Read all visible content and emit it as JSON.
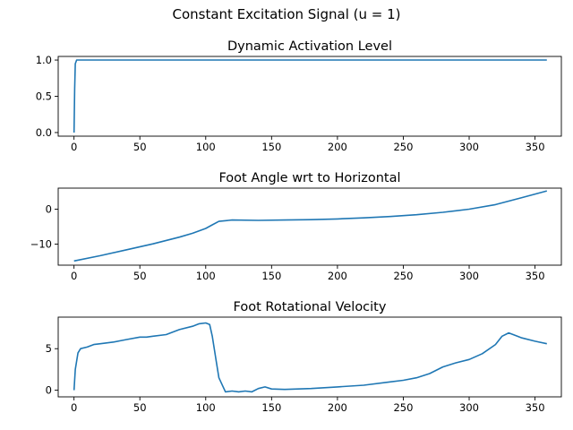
{
  "figure": {
    "suptitle": "Constant Excitation Signal (u = 1)"
  },
  "chart_data": [
    {
      "type": "line",
      "title": "Dynamic Activation Level",
      "xlabel": "",
      "ylabel": "",
      "xlim": [
        -12,
        370
      ],
      "ylim": [
        -0.05,
        1.05
      ],
      "xticks": [
        0,
        50,
        100,
        150,
        200,
        250,
        300,
        350
      ],
      "yticks": [
        0.0,
        0.5,
        1.0
      ],
      "ytick_labels": [
        "0.0",
        "0.5",
        "1.0"
      ],
      "grid": false,
      "color": "#1f77b4",
      "series": [
        {
          "x": [
            0,
            0.5,
            1,
            2,
            5,
            50,
            100,
            150,
            200,
            250,
            300,
            359
          ],
          "y": [
            0.0,
            0.6,
            0.95,
            1.0,
            1.0,
            1.0,
            1.0,
            1.0,
            1.0,
            1.0,
            1.0,
            1.0
          ]
        }
      ]
    },
    {
      "type": "line",
      "title": "Foot Angle wrt to Horizontal",
      "xlabel": "",
      "ylabel": "",
      "xlim": [
        -12,
        370
      ],
      "ylim": [
        -16,
        6
      ],
      "xticks": [
        0,
        50,
        100,
        150,
        200,
        250,
        300,
        350
      ],
      "yticks": [
        -10,
        0
      ],
      "ytick_labels": [
        "−10",
        "0"
      ],
      "grid": false,
      "color": "#1f77b4",
      "series": [
        {
          "x": [
            0,
            20,
            40,
            60,
            80,
            90,
            100,
            105,
            110,
            120,
            140,
            160,
            180,
            200,
            220,
            240,
            260,
            280,
            300,
            320,
            340,
            359
          ],
          "y": [
            -14.8,
            -13.3,
            -11.6,
            -9.9,
            -8.0,
            -6.9,
            -5.5,
            -4.5,
            -3.5,
            -3.1,
            -3.2,
            -3.1,
            -3.0,
            -2.8,
            -2.5,
            -2.1,
            -1.6,
            -0.9,
            0.0,
            1.3,
            3.3,
            5.2
          ]
        }
      ]
    },
    {
      "type": "line",
      "title": "Foot Rotational Velocity",
      "xlabel": "",
      "ylabel": "",
      "xlim": [
        -12,
        370
      ],
      "ylim": [
        -0.8,
        8.8
      ],
      "xticks": [
        0,
        50,
        100,
        150,
        200,
        250,
        300,
        350
      ],
      "yticks": [
        0,
        5
      ],
      "ytick_labels": [
        "0",
        "5"
      ],
      "grid": false,
      "color": "#1f77b4",
      "series": [
        {
          "x": [
            0,
            1,
            3,
            5,
            10,
            15,
            20,
            30,
            40,
            50,
            55,
            60,
            70,
            80,
            90,
            95,
            100,
            103,
            105,
            108,
            110,
            115,
            120,
            125,
            130,
            135,
            140,
            145,
            150,
            160,
            180,
            200,
            220,
            240,
            250,
            260,
            270,
            280,
            290,
            300,
            310,
            320,
            325,
            330,
            335,
            340,
            350,
            359
          ],
          "y": [
            0.0,
            2.5,
            4.5,
            5.0,
            5.2,
            5.5,
            5.6,
            5.8,
            6.1,
            6.4,
            6.4,
            6.5,
            6.7,
            7.3,
            7.7,
            8.0,
            8.1,
            7.9,
            6.5,
            3.5,
            1.5,
            -0.2,
            -0.1,
            -0.2,
            -0.1,
            -0.2,
            0.2,
            0.4,
            0.15,
            0.1,
            0.2,
            0.4,
            0.6,
            1.0,
            1.2,
            1.5,
            2.0,
            2.8,
            3.3,
            3.7,
            4.4,
            5.5,
            6.5,
            6.9,
            6.6,
            6.3,
            5.9,
            5.6
          ]
        }
      ]
    }
  ]
}
